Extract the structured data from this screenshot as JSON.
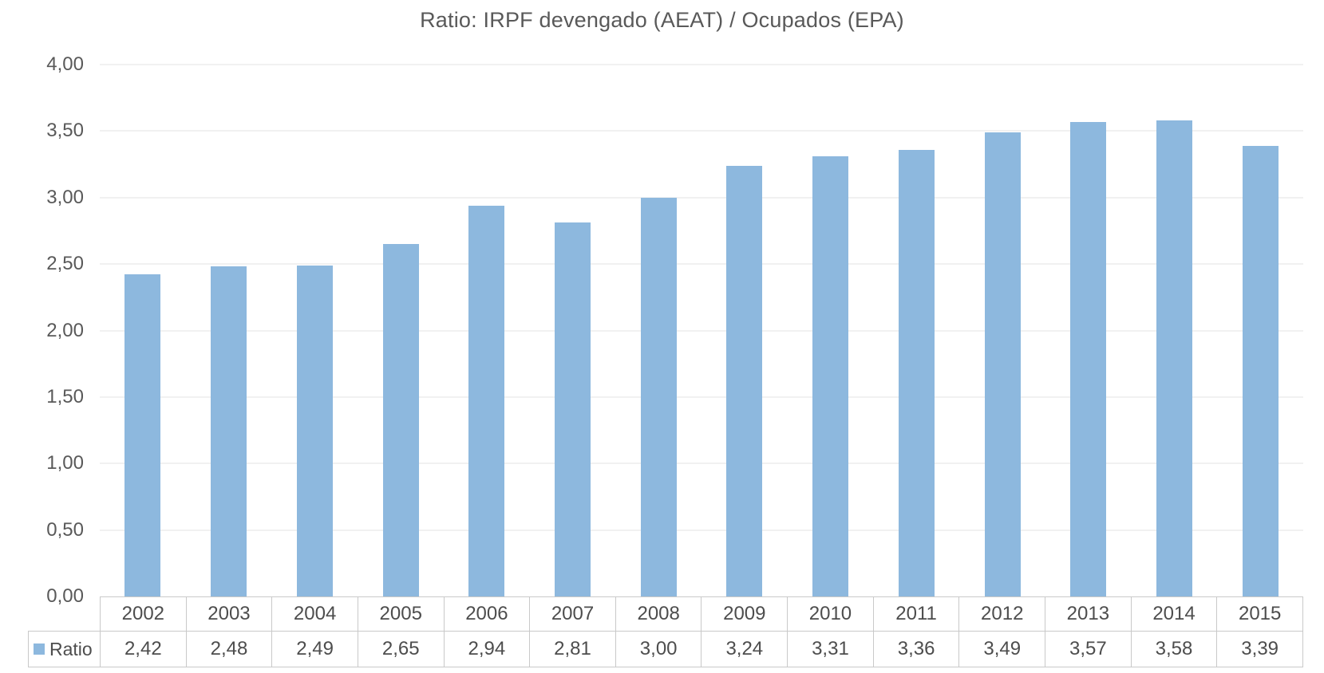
{
  "chart_data": {
    "type": "bar",
    "title": "Ratio: IRPF devengado (AEAT) / Ocupados (EPA)",
    "categories": [
      "2002",
      "2003",
      "2004",
      "2005",
      "2006",
      "2007",
      "2008",
      "2009",
      "2010",
      "2011",
      "2012",
      "2013",
      "2014",
      "2015"
    ],
    "series": [
      {
        "name": "Ratio",
        "values": [
          2.42,
          2.48,
          2.49,
          2.65,
          2.94,
          2.81,
          3.0,
          3.24,
          3.31,
          3.36,
          3.49,
          3.57,
          3.58,
          3.39
        ],
        "values_display": [
          "2,42",
          "2,48",
          "2,49",
          "2,65",
          "2,94",
          "2,81",
          "3,00",
          "3,24",
          "3,31",
          "3,36",
          "3,49",
          "3,57",
          "3,58",
          "3,39"
        ],
        "color": "#8DB8DE"
      }
    ],
    "xlabel": "",
    "ylabel": "",
    "ylim": [
      0,
      4
    ],
    "ytick_step": 0.5,
    "ytick_labels": [
      "0,00",
      "0,50",
      "1,00",
      "1,50",
      "2,00",
      "2,50",
      "3,00",
      "3,50",
      "4,00"
    ],
    "grid": true,
    "legend_position": "bottom-left-data-table",
    "data_table_shown": true
  }
}
